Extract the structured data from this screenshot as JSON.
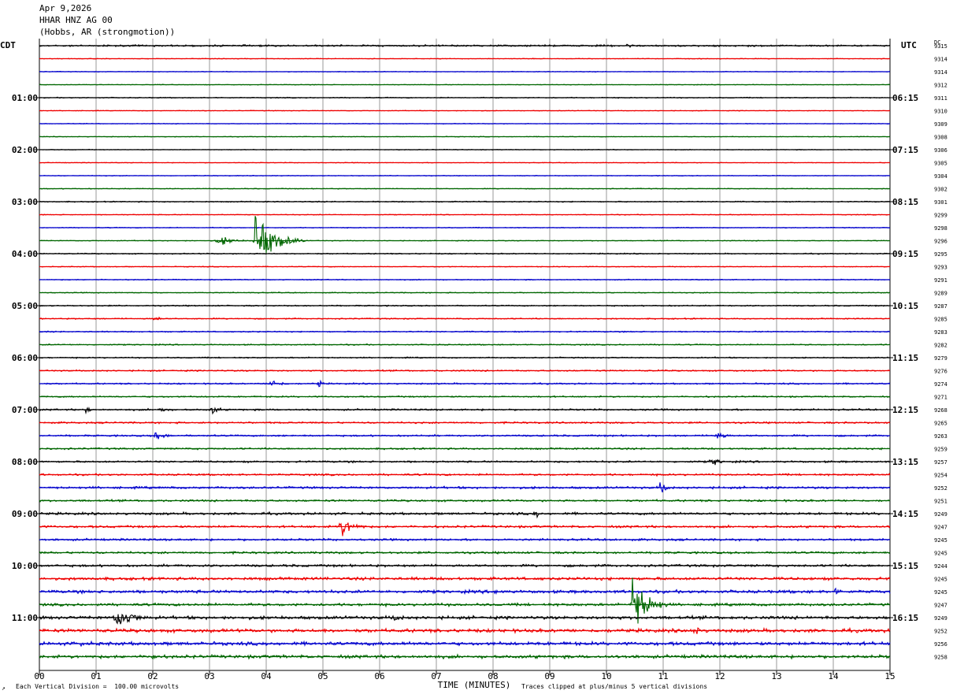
{
  "header": {
    "date": "Apr 9,2026",
    "station": "HHAR HNZ AG 00",
    "location": "(Hobbs, AR (strongmotion))"
  },
  "left_timezone": "CDT",
  "right_timezone": "UTC",
  "dc_label": "DC",
  "footer": {
    "scale_note": "Each Vertical Division =  100.00 microvolts",
    "xlabel": "TIME (MINUTES)",
    "clip_note": "Traces clipped at plus/minus 5 vertical divisions",
    "corner_mark": "↗"
  },
  "colors": {
    "trace_cycle": [
      "#000000",
      "#ee0000",
      "#0000cc",
      "#006600"
    ],
    "grid": "#999999"
  },
  "chart_data": {
    "type": "line",
    "xlabel": "TIME (MINUTES)",
    "xlim": [
      0,
      15
    ],
    "x_ticks": [
      "00",
      "01",
      "02",
      "03",
      "04",
      "05",
      "06",
      "07",
      "08",
      "09",
      "10",
      "11",
      "12",
      "13",
      "14",
      "15"
    ],
    "left_hour_labels": [
      "01:00",
      "02:00",
      "03:00",
      "04:00",
      "05:00",
      "06:00",
      "07:00",
      "08:00",
      "09:00",
      "10:00",
      "11:00"
    ],
    "right_hour_labels": [
      "06:15",
      "07:15",
      "08:15",
      "09:15",
      "10:15",
      "11:15",
      "12:15",
      "13:15",
      "14:15",
      "15:15",
      "16:15"
    ],
    "trace_interval_minutes": 15,
    "trace_count": 48,
    "dc_offsets": [
      "9315",
      "9314",
      "9314",
      "9312",
      "9311",
      "9310",
      "9309",
      "9308",
      "9306",
      "9305",
      "9304",
      "9302",
      "9301",
      "9299",
      "9298",
      "9296",
      "9295",
      "9293",
      "9291",
      "9289",
      "9287",
      "9285",
      "9283",
      "9282",
      "9279",
      "9276",
      "9274",
      "9271",
      "9268",
      "9265",
      "9263",
      "9259",
      "9257",
      "9254",
      "9252",
      "9251",
      "9249",
      "9247",
      "9245",
      "9245",
      "9244",
      "9245",
      "9245",
      "9247",
      "9249",
      "9252",
      "9256",
      "9258"
    ],
    "noise_levels": [
      1.3,
      0.5,
      0.5,
      0.5,
      0.7,
      0.5,
      0.5,
      0.5,
      0.5,
      0.5,
      0.5,
      0.6,
      0.8,
      0.6,
      0.6,
      0.6,
      0.8,
      0.6,
      0.7,
      0.7,
      0.9,
      0.9,
      0.9,
      0.9,
      0.9,
      1.1,
      1.1,
      1.1,
      1.3,
      1.3,
      1.3,
      1.3,
      1.4,
      1.4,
      1.7,
      1.5,
      1.8,
      1.7,
      1.6,
      1.6,
      1.8,
      2.2,
      2.3,
      2.0,
      2.4,
      2.6,
      2.6,
      2.4
    ],
    "events": [
      {
        "trace": 0,
        "minute": 10.3,
        "duration": 0.5,
        "amplitude": 2
      },
      {
        "trace": 15,
        "minute": 3.1,
        "duration": 0.7,
        "amplitude": 4
      },
      {
        "trace": 15,
        "minute": 3.8,
        "duration": 0.9,
        "amplitude": 17
      },
      {
        "trace": 21,
        "minute": 2.0,
        "duration": 0.3,
        "amplitude": 3
      },
      {
        "trace": 26,
        "minute": 4.0,
        "duration": 0.6,
        "amplitude": 4
      },
      {
        "trace": 26,
        "minute": 4.9,
        "duration": 0.2,
        "amplitude": 4
      },
      {
        "trace": 28,
        "minute": 0.8,
        "duration": 0.2,
        "amplitude": 4
      },
      {
        "trace": 28,
        "minute": 2.1,
        "duration": 0.3,
        "amplitude": 5
      },
      {
        "trace": 28,
        "minute": 3.0,
        "duration": 0.4,
        "amplitude": 4
      },
      {
        "trace": 30,
        "minute": 2.0,
        "duration": 0.5,
        "amplitude": 4
      },
      {
        "trace": 30,
        "minute": 11.9,
        "duration": 0.4,
        "amplitude": 5
      },
      {
        "trace": 32,
        "minute": 11.8,
        "duration": 0.5,
        "amplitude": 4
      },
      {
        "trace": 34,
        "minute": 10.9,
        "duration": 0.4,
        "amplitude": 6
      },
      {
        "trace": 36,
        "minute": 8.7,
        "duration": 0.3,
        "amplitude": 4
      },
      {
        "trace": 37,
        "minute": 5.25,
        "duration": 0.7,
        "amplitude": 8
      },
      {
        "trace": 42,
        "minute": 8.0,
        "duration": 0.3,
        "amplitude": 4
      },
      {
        "trace": 42,
        "minute": 14.0,
        "duration": 0.3,
        "amplitude": 4
      },
      {
        "trace": 43,
        "minute": 10.45,
        "duration": 0.7,
        "amplitude": 20
      },
      {
        "trace": 44,
        "minute": 1.3,
        "duration": 0.8,
        "amplitude": 10
      },
      {
        "trace": 44,
        "minute": 6.2,
        "duration": 0.5,
        "amplitude": 4
      },
      {
        "trace": 45,
        "minute": 11.5,
        "duration": 0.4,
        "amplitude": 5
      },
      {
        "trace": 46,
        "minute": 0.7,
        "duration": 0.4,
        "amplitude": 4
      },
      {
        "trace": 47,
        "minute": 1.9,
        "duration": 0.3,
        "amplitude": 5
      }
    ],
    "grid": true
  }
}
